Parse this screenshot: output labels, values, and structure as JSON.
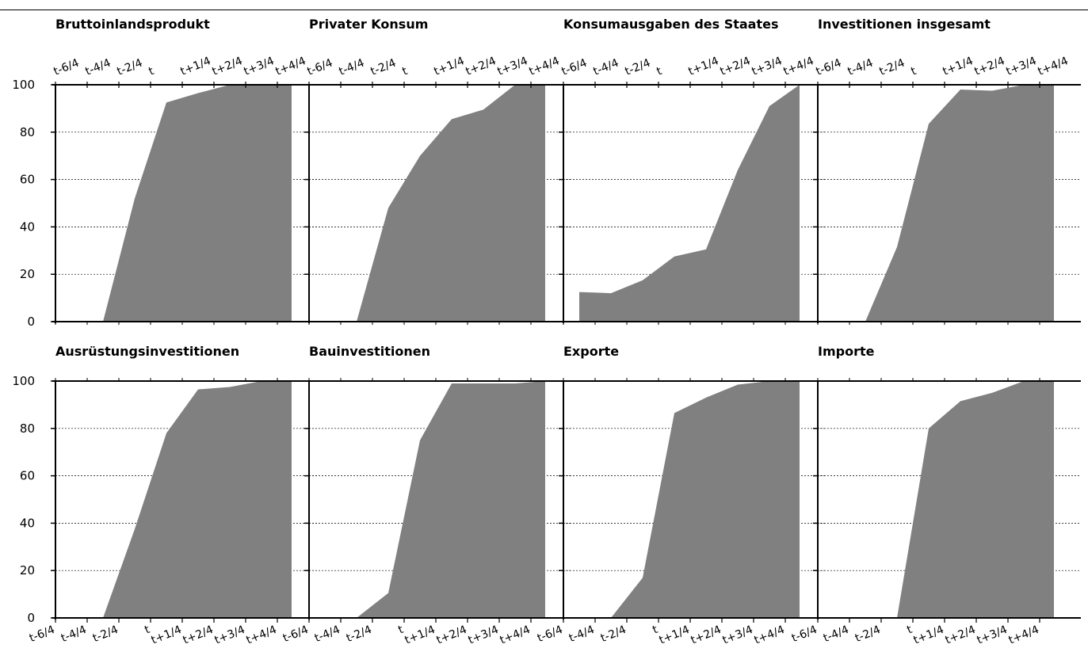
{
  "chart_data": {
    "type": "area",
    "x_ticks": [
      "t-6/4",
      "t-4/4",
      "t-2/4",
      "t",
      "t+1/4",
      "t+2/4",
      "t+3/4",
      "t+4/4"
    ],
    "y_ticks": [
      "0",
      "20",
      "40",
      "60",
      "80",
      "100"
    ],
    "ylim": [
      0,
      100
    ],
    "grid": true,
    "colors": {
      "fill": "#808080",
      "axis": "#000000",
      "grid": "#000000"
    },
    "panels": [
      {
        "title": "Bruttoinlandsprodukt",
        "values": [
          0,
          0,
          0,
          52,
          92.5,
          96.5,
          100,
          100,
          100
        ]
      },
      {
        "title": "Privater Konsum",
        "values": [
          0,
          0,
          0,
          48,
          70,
          85.5,
          89.5,
          100,
          100
        ]
      },
      {
        "title": "Konsumausgaben des Staates",
        "values": [
          null,
          12.5,
          12,
          17.5,
          27.5,
          30.5,
          64,
          91,
          100
        ]
      },
      {
        "title": "Investitionen insgesamt",
        "values": [
          0,
          0,
          0,
          31.5,
          83.5,
          98,
          97.5,
          100,
          100
        ]
      },
      {
        "title": "Ausrüstungsinvestitionen",
        "values": [
          0,
          0,
          0,
          37.5,
          78,
          96.5,
          97.5,
          100,
          100
        ]
      },
      {
        "title": "Bauinvestitionen",
        "values": [
          0,
          0,
          0,
          10.5,
          75,
          99,
          99,
          99,
          100
        ]
      },
      {
        "title": "Exporte",
        "values": [
          0,
          0,
          0,
          17,
          86.5,
          93,
          98.5,
          100,
          100
        ]
      },
      {
        "title": "Importe",
        "values": [
          0,
          0,
          0,
          0,
          80,
          91.5,
          95,
          100,
          100
        ]
      }
    ]
  }
}
